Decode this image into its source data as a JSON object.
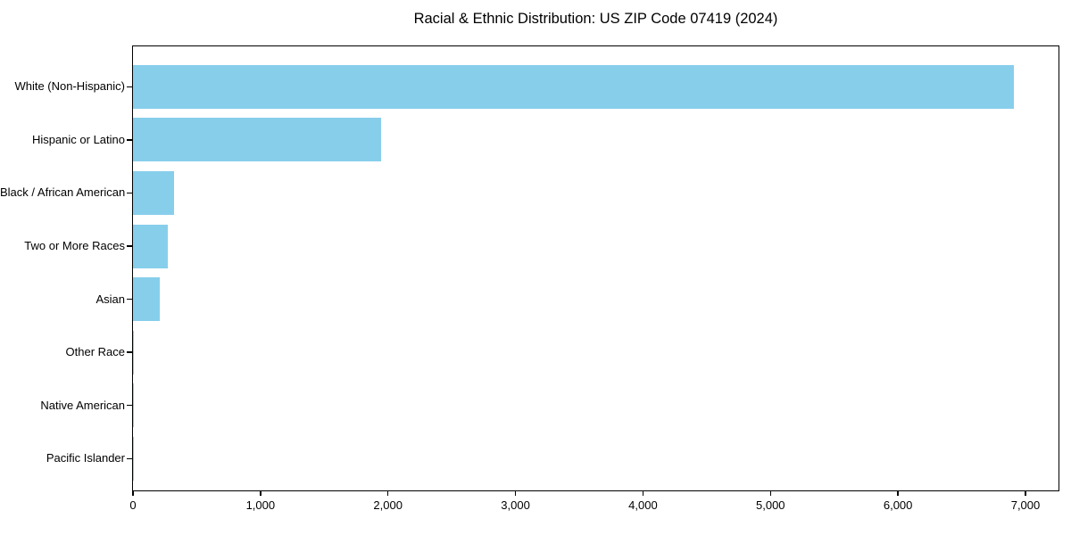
{
  "title": "Racial & Ethnic Distribution: US ZIP Code 07419 (2024)",
  "chart_data": {
    "type": "bar",
    "orientation": "horizontal",
    "title": "Racial & Ethnic Distribution: US ZIP Code 07419 (2024)",
    "categories": [
      "White (Non-Hispanic)",
      "Hispanic or Latino",
      "Black / African American",
      "Two or More Races",
      "Asian",
      "Other Race",
      "Native American",
      "Pacific Islander"
    ],
    "values": [
      6909,
      1946,
      322,
      271,
      210,
      8,
      3,
      1
    ],
    "xlabel": "",
    "ylabel": "",
    "xlim": [
      0,
      7259
    ],
    "xticks": [
      0,
      1000,
      2000,
      3000,
      4000,
      5000,
      6000,
      7000
    ],
    "xtick_labels": [
      "0",
      "1,000",
      "2,000",
      "3,000",
      "4,000",
      "5,000",
      "6,000",
      "7,000"
    ],
    "bar_color": "#87CEEB",
    "axis_color": "#000000",
    "text_color": "#000000",
    "background_color": "#FFFFFF",
    "grid": false,
    "legend_position": "none"
  }
}
